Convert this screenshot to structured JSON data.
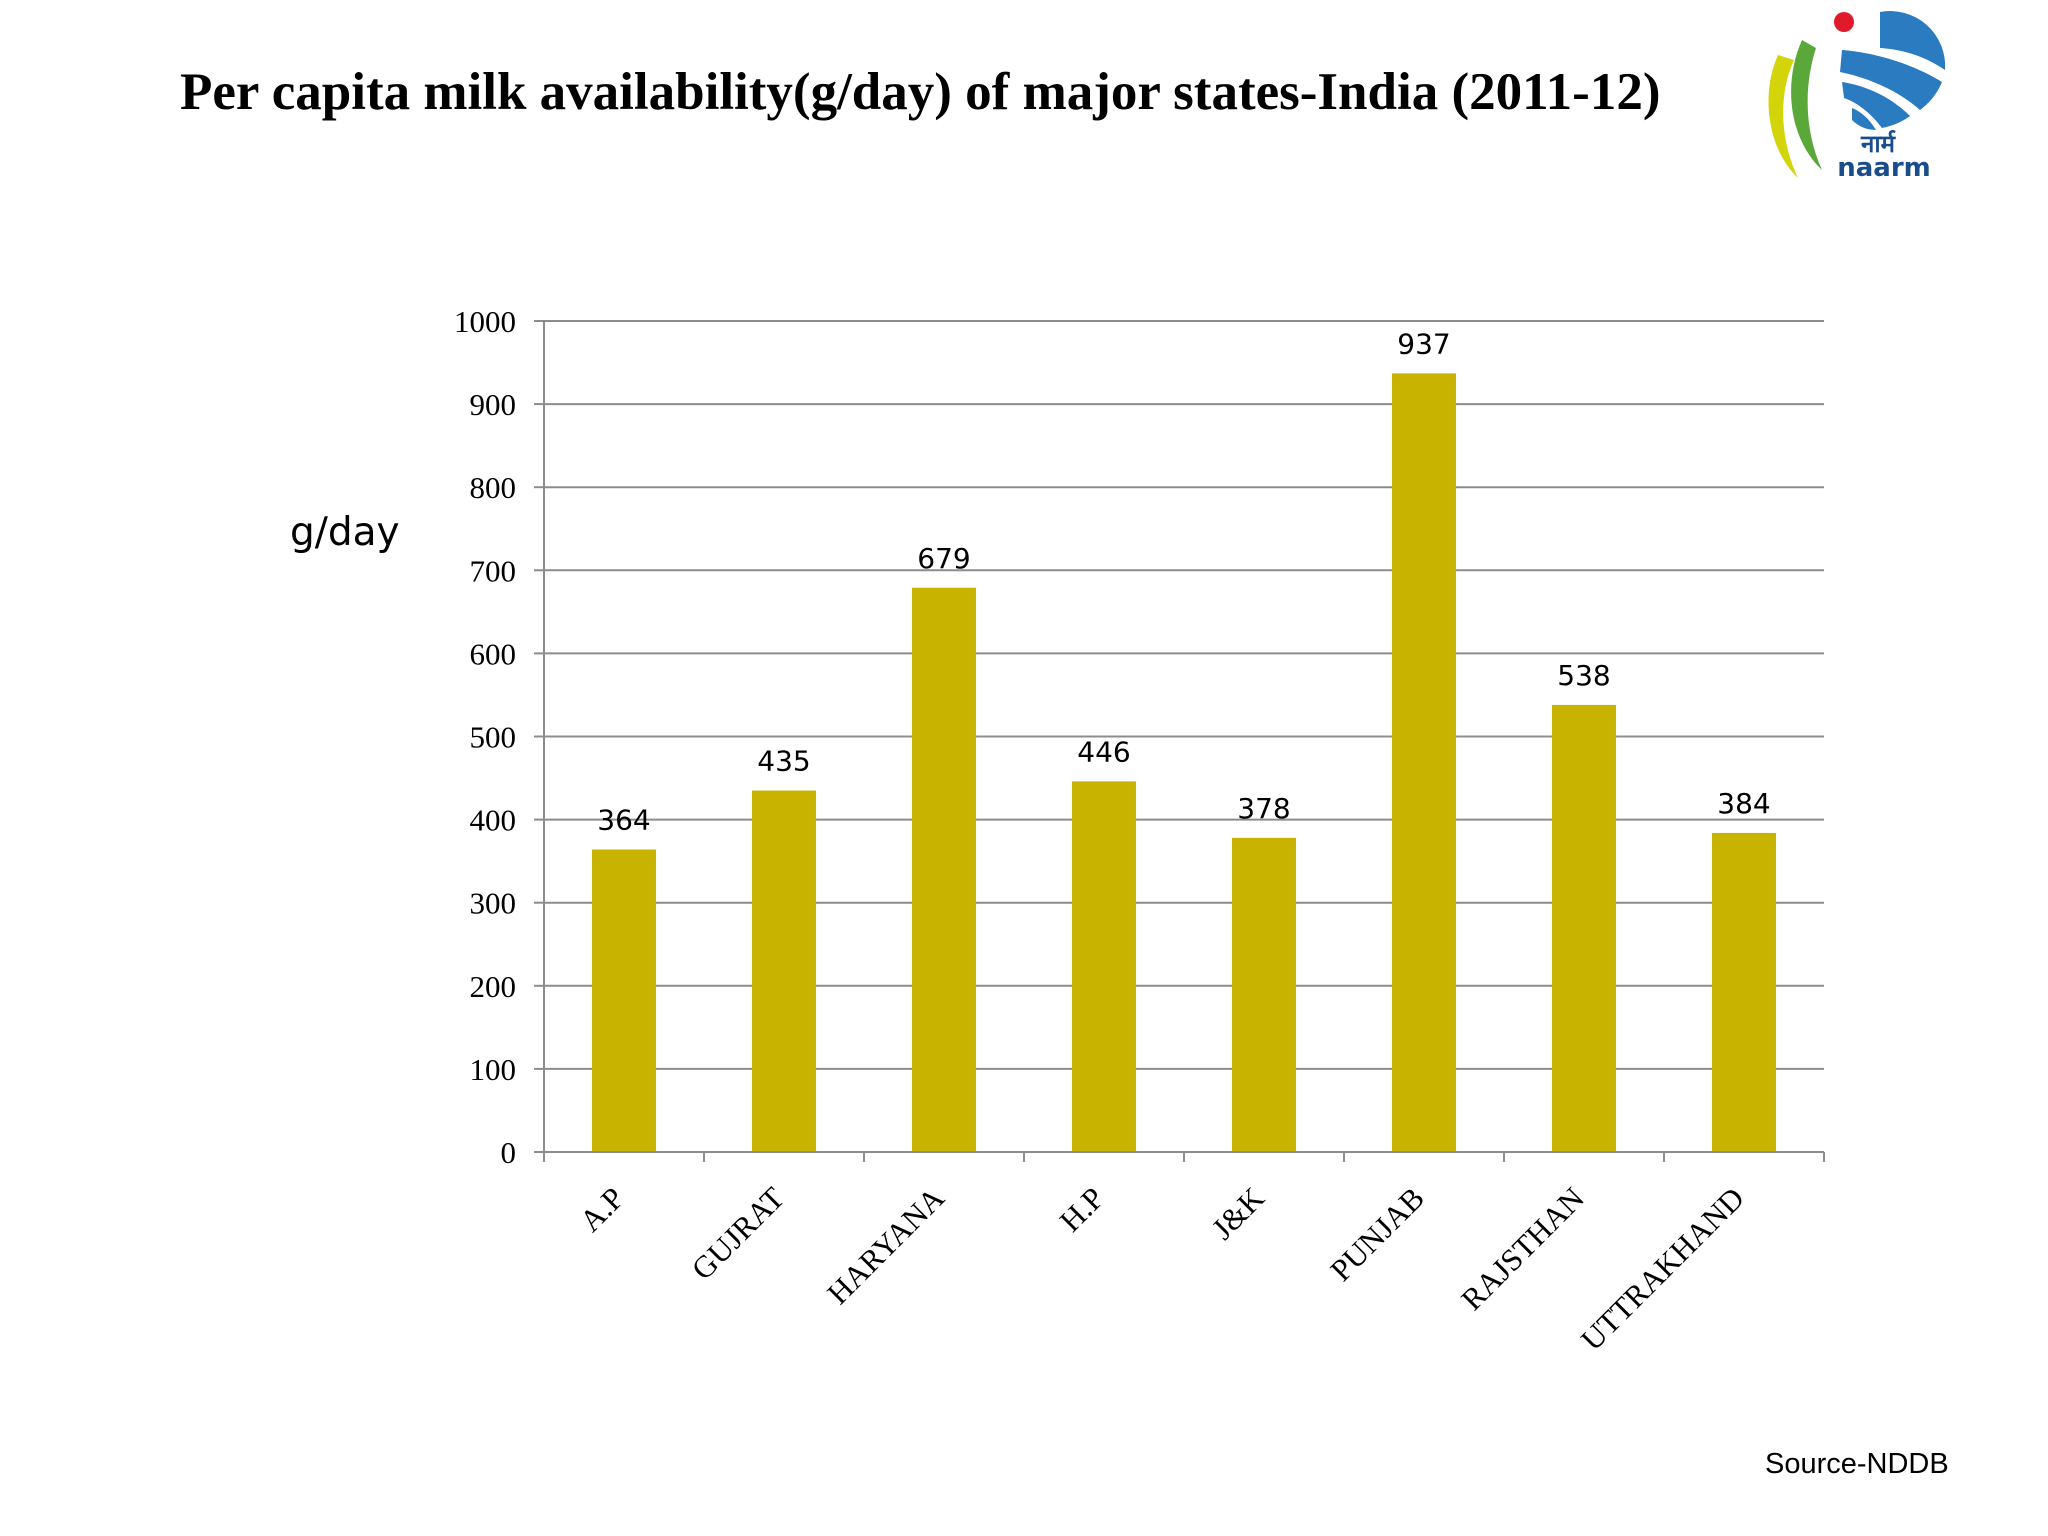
{
  "slide": {
    "title": "Per capita milk availability(g/day) of major states-India (2011-12)",
    "source": "Source-NDDB"
  },
  "logo": {
    "hindi_text": "नार्म",
    "text": "naarm",
    "colors": {
      "globe": "#2a7bbf",
      "dot": "#e0192b",
      "leaf_yellow": "#d4d40a",
      "leaf_green": "#5aa83a"
    }
  },
  "chart_data": {
    "type": "bar",
    "title": "",
    "xlabel": "",
    "ylabel": "g/day",
    "ylim": [
      0,
      1000
    ],
    "yticks": [
      0,
      100,
      200,
      300,
      400,
      500,
      600,
      700,
      800,
      900,
      1000
    ],
    "categories": [
      "A.P",
      "GUJRAT",
      "HARYANA",
      "H.P",
      "J&K",
      "PUNJAB",
      "RAJSTHAN",
      "UTTRAKHAND"
    ],
    "values": [
      364,
      435,
      679,
      446,
      378,
      937,
      538,
      384
    ],
    "data_labels": true,
    "grid": true,
    "bar_color": "#c8b400",
    "grid_color": "#8c8c8c"
  }
}
